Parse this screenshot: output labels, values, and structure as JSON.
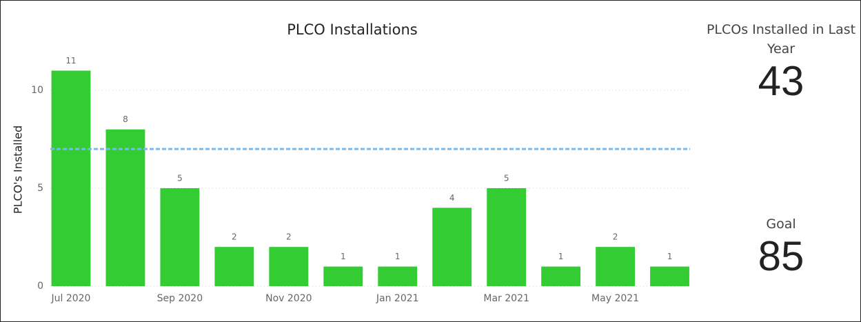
{
  "chart_data": {
    "type": "bar",
    "title": "PLCO Installations",
    "y_label": "PLCO's Installed",
    "categories": [
      "Jul 2020",
      null,
      "Sep 2020",
      null,
      "Nov 2020",
      null,
      "Jan 2021",
      null,
      "Mar 2021",
      null,
      "May 2021",
      null
    ],
    "values": [
      11,
      8,
      5,
      2,
      2,
      1,
      1,
      4,
      5,
      1,
      2,
      1
    ],
    "color": "#33cc33",
    "ylim": [
      0,
      12
    ],
    "yticks": [
      0,
      5,
      10
    ],
    "grid": true,
    "reference_line": {
      "value": 7,
      "color": "#77b9f3"
    }
  },
  "cards": [
    {
      "label": "PLCOs Installed in Last Year",
      "value": 43
    },
    {
      "label": "Goal",
      "value": 85
    }
  ]
}
